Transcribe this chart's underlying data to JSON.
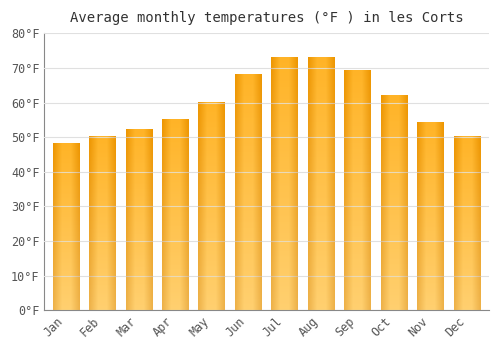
{
  "title": "Average monthly temperatures (°F ) in les Corts",
  "months": [
    "Jan",
    "Feb",
    "Mar",
    "Apr",
    "May",
    "Jun",
    "Jul",
    "Aug",
    "Sep",
    "Oct",
    "Nov",
    "Dec"
  ],
  "values": [
    48,
    50,
    52,
    55,
    60,
    68,
    73,
    73,
    69,
    62,
    54,
    50
  ],
  "bar_color_main": "#FFA500",
  "bar_color_light": "#FFD966",
  "ylim": [
    0,
    80
  ],
  "yticks": [
    0,
    10,
    20,
    30,
    40,
    50,
    60,
    70,
    80
  ],
  "ytick_labels": [
    "0°F",
    "10°F",
    "20°F",
    "30°F",
    "40°F",
    "50°F",
    "60°F",
    "70°F",
    "80°F"
  ],
  "bg_color": "#ffffff",
  "grid_color": "#e0e0e0",
  "title_fontsize": 10,
  "tick_fontsize": 8.5,
  "bar_width": 0.72
}
